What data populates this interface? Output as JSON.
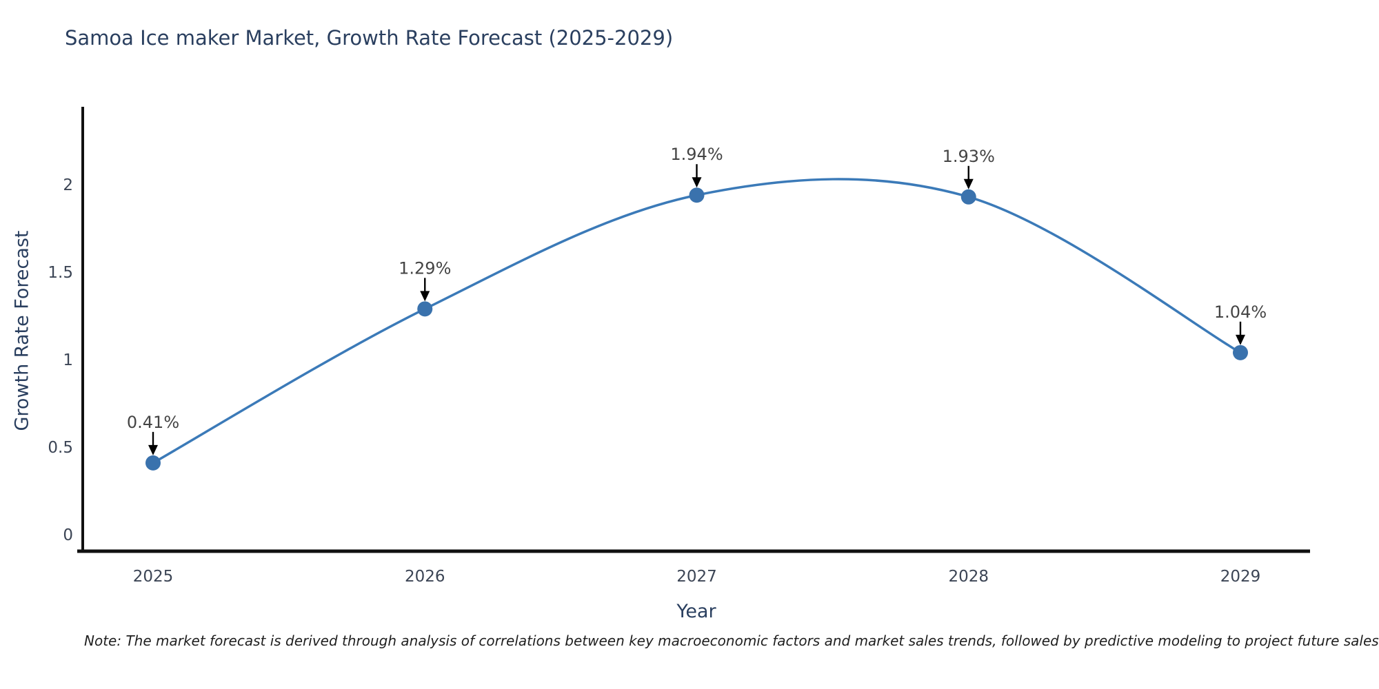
{
  "title": "Samoa Ice maker Market, Growth Rate Forecast (2025-2029)",
  "note": "Note: The market forecast is derived through analysis of correlations between key macroeconomic factors and market sales trends, followed by predictive modeling to project future sales",
  "chart_data": {
    "type": "line",
    "line_shape": "spline",
    "title": "Samoa Ice maker Market, Growth Rate Forecast (2025-2029)",
    "xlabel": "Year",
    "ylabel": "Growth Rate Forecast",
    "x": [
      "2025",
      "2026",
      "2027",
      "2028",
      "2029"
    ],
    "y": [
      0.41,
      1.29,
      1.94,
      1.93,
      1.04
    ],
    "point_labels": [
      "0.41%",
      "1.29%",
      "1.94%",
      "1.93%",
      "1.04%"
    ],
    "yticks": [
      0,
      0.5,
      1,
      1.5,
      2
    ],
    "ytick_labels": [
      "0",
      "0.5",
      "1",
      "1.5",
      "2"
    ],
    "ylim": [
      -0.1,
      2.45
    ],
    "grid": false,
    "legend": "none",
    "colors": {
      "line": "#3b7ab8",
      "marker": "#3a72ad",
      "axis": "#111111",
      "annotation_text": "#444444",
      "annotation_arrow": "#000000",
      "title_text": "#2a3f5f",
      "tick_text": "#3c4555"
    }
  }
}
